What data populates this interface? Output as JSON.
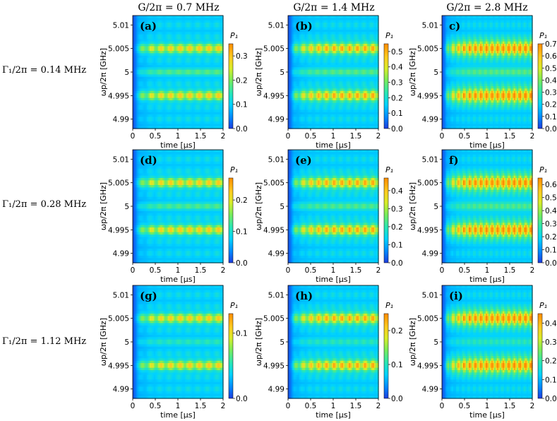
{
  "figure": {
    "column_titles": [
      "G/2π = 0.7 MHz",
      "G/2π = 1.4 MHz",
      "G/2π = 2.8 MHz"
    ],
    "row_titles": [
      "Γ₁/2π = 0.14 MHz",
      "Γ₁/2π = 0.28 MHz",
      "Γ₁/2π = 1.12 MHz"
    ],
    "colorbar_label": "P₁",
    "colormap": [
      "#1e3cdc",
      "#008cff",
      "#00d2ff",
      "#28e6b4",
      "#78ec5a",
      "#d8ec28",
      "#ffc81e",
      "#ff8c00"
    ]
  },
  "chart_data": [
    {
      "type": "heatmap",
      "panel": "(a)",
      "xlabel": "time [μs]",
      "ylabel": "ωp/2π [GHz]",
      "xlim": [
        0,
        2
      ],
      "ylim": [
        4.988,
        5.012
      ],
      "xticks": [
        {
          "v": 0,
          "t": "0"
        },
        {
          "v": 0.5,
          "t": "0.5"
        },
        {
          "v": 1,
          "t": "1"
        },
        {
          "v": 1.5,
          "t": "1.5"
        },
        {
          "v": 2,
          "t": "2"
        }
      ],
      "yticks": [
        {
          "v": 4.99,
          "t": "4.99"
        },
        {
          "v": 4.995,
          "t": "4.995"
        },
        {
          "v": 5,
          "t": "5"
        },
        {
          "v": 5.005,
          "t": "5.005"
        },
        {
          "v": 5.01,
          "t": "5.01"
        }
      ],
      "colorbar": {
        "min": 0,
        "max": 0.35,
        "ticks": [
          {
            "v": 0,
            "t": "0.0"
          },
          {
            "v": 0.1,
            "t": "0.1"
          },
          {
            "v": 0.2,
            "t": "0.2"
          },
          {
            "v": 0.3,
            "t": "0.3"
          }
        ]
      },
      "bands_GHz": [
        5.005,
        4.995
      ],
      "G_MHz": 0.7,
      "Gamma1_MHz": 0.14
    },
    {
      "type": "heatmap",
      "panel": "(b)",
      "xlabel": "time [μs]",
      "ylabel": "ωp/2π [GHz]",
      "xlim": [
        0,
        2
      ],
      "ylim": [
        4.988,
        5.012
      ],
      "xticks": [
        {
          "v": 0,
          "t": "0"
        },
        {
          "v": 0.5,
          "t": "0.5"
        },
        {
          "v": 1,
          "t": "1"
        },
        {
          "v": 1.5,
          "t": "1.5"
        },
        {
          "v": 2,
          "t": "2"
        }
      ],
      "yticks": [
        {
          "v": 4.99,
          "t": "4.99"
        },
        {
          "v": 4.995,
          "t": "4.995"
        },
        {
          "v": 5,
          "t": "5"
        },
        {
          "v": 5.005,
          "t": "5.005"
        },
        {
          "v": 5.01,
          "t": "5.01"
        }
      ],
      "colorbar": {
        "min": 0,
        "max": 0.55,
        "ticks": [
          {
            "v": 0,
            "t": "0.0"
          },
          {
            "v": 0.1,
            "t": "0.1"
          },
          {
            "v": 0.2,
            "t": "0.2"
          },
          {
            "v": 0.3,
            "t": "0.3"
          },
          {
            "v": 0.4,
            "t": "0.4"
          },
          {
            "v": 0.5,
            "t": "0.5"
          }
        ]
      },
      "bands_GHz": [
        5.005,
        4.995
      ],
      "G_MHz": 1.4,
      "Gamma1_MHz": 0.14
    },
    {
      "type": "heatmap",
      "panel": "c)",
      "xlabel": "time [μs]",
      "ylabel": "ωp/2π [GHz]",
      "xlim": [
        0,
        2
      ],
      "ylim": [
        4.988,
        5.012
      ],
      "xticks": [
        {
          "v": 0,
          "t": "0"
        },
        {
          "v": 0.5,
          "t": "0.5"
        },
        {
          "v": 1,
          "t": "1"
        },
        {
          "v": 1.5,
          "t": "1.5"
        },
        {
          "v": 2,
          "t": "2"
        }
      ],
      "yticks": [
        {
          "v": 4.99,
          "t": "4.99"
        },
        {
          "v": 4.995,
          "t": "4.995"
        },
        {
          "v": 5,
          "t": "5"
        },
        {
          "v": 5.005,
          "t": "5.005"
        },
        {
          "v": 5.01,
          "t": "5.01"
        }
      ],
      "colorbar": {
        "min": 0,
        "max": 0.7,
        "ticks": [
          {
            "v": 0,
            "t": "0.0"
          },
          {
            "v": 0.1,
            "t": "0.1"
          },
          {
            "v": 0.2,
            "t": "0.2"
          },
          {
            "v": 0.3,
            "t": "0.3"
          },
          {
            "v": 0.4,
            "t": "0.4"
          },
          {
            "v": 0.5,
            "t": "0.5"
          },
          {
            "v": 0.6,
            "t": "0.6"
          },
          {
            "v": 0.7,
            "t": "0.7"
          }
        ]
      },
      "bands_GHz": [
        5.005,
        4.995
      ],
      "G_MHz": 2.8,
      "Gamma1_MHz": 0.14
    },
    {
      "type": "heatmap",
      "panel": "(d)",
      "xlabel": "time [μs]",
      "ylabel": "ωp/2π [GHz]",
      "xlim": [
        0,
        2
      ],
      "ylim": [
        4.988,
        5.012
      ],
      "xticks": [
        {
          "v": 0,
          "t": "0"
        },
        {
          "v": 0.5,
          "t": "0.5"
        },
        {
          "v": 1,
          "t": "1"
        },
        {
          "v": 1.5,
          "t": "1.5"
        },
        {
          "v": 2,
          "t": "2"
        }
      ],
      "yticks": [
        {
          "v": 4.99,
          "t": "4.99"
        },
        {
          "v": 4.995,
          "t": "4.995"
        },
        {
          "v": 5,
          "t": "5"
        },
        {
          "v": 5.005,
          "t": "5.005"
        },
        {
          "v": 5.01,
          "t": "5.01"
        }
      ],
      "colorbar": {
        "min": 0,
        "max": 0.27,
        "ticks": [
          {
            "v": 0,
            "t": "0.0"
          },
          {
            "v": 0.1,
            "t": "0.1"
          },
          {
            "v": 0.2,
            "t": "0.2"
          }
        ]
      },
      "bands_GHz": [
        5.005,
        4.995
      ],
      "G_MHz": 0.7,
      "Gamma1_MHz": 0.28
    },
    {
      "type": "heatmap",
      "panel": "(e)",
      "xlabel": "time [μs]",
      "ylabel": "ωp/2π [GHz]",
      "xlim": [
        0,
        2
      ],
      "ylim": [
        4.988,
        5.012
      ],
      "xticks": [
        {
          "v": 0,
          "t": "0"
        },
        {
          "v": 0.5,
          "t": "0.5"
        },
        {
          "v": 1,
          "t": "1"
        },
        {
          "v": 1.5,
          "t": "1.5"
        },
        {
          "v": 2,
          "t": "2"
        }
      ],
      "yticks": [
        {
          "v": 4.99,
          "t": "4.99"
        },
        {
          "v": 4.995,
          "t": "4.995"
        },
        {
          "v": 5,
          "t": "5"
        },
        {
          "v": 5.005,
          "t": "5.005"
        },
        {
          "v": 5.01,
          "t": "5.01"
        }
      ],
      "colorbar": {
        "min": 0,
        "max": 0.47,
        "ticks": [
          {
            "v": 0,
            "t": "0.0"
          },
          {
            "v": 0.1,
            "t": "0.1"
          },
          {
            "v": 0.2,
            "t": "0.2"
          },
          {
            "v": 0.3,
            "t": "0.3"
          },
          {
            "v": 0.4,
            "t": "0.4"
          }
        ]
      },
      "bands_GHz": [
        5.005,
        4.995
      ],
      "G_MHz": 1.4,
      "Gamma1_MHz": 0.28
    },
    {
      "type": "heatmap",
      "panel": "f)",
      "xlabel": "time [μs]",
      "ylabel": "ωp/2π [GHz]",
      "xlim": [
        0,
        2
      ],
      "ylim": [
        4.988,
        5.012
      ],
      "xticks": [
        {
          "v": 0,
          "t": "0"
        },
        {
          "v": 0.5,
          "t": "0.5"
        },
        {
          "v": 1,
          "t": "1"
        },
        {
          "v": 1.5,
          "t": "1.5"
        },
        {
          "v": 2,
          "t": "2"
        }
      ],
      "yticks": [
        {
          "v": 4.99,
          "t": "4.99"
        },
        {
          "v": 4.995,
          "t": "4.995"
        },
        {
          "v": 5,
          "t": "5"
        },
        {
          "v": 5.005,
          "t": "5.005"
        },
        {
          "v": 5.01,
          "t": "5.01"
        }
      ],
      "colorbar": {
        "min": 0,
        "max": 0.65,
        "ticks": [
          {
            "v": 0,
            "t": "0.0"
          },
          {
            "v": 0.1,
            "t": "0.1"
          },
          {
            "v": 0.2,
            "t": "0.2"
          },
          {
            "v": 0.3,
            "t": "0.3"
          },
          {
            "v": 0.4,
            "t": "0.4"
          },
          {
            "v": 0.5,
            "t": "0.5"
          },
          {
            "v": 0.6,
            "t": "0.6"
          }
        ]
      },
      "bands_GHz": [
        5.005,
        4.995
      ],
      "G_MHz": 2.8,
      "Gamma1_MHz": 0.28
    },
    {
      "type": "heatmap",
      "panel": "(g)",
      "xlabel": "time [μs]",
      "ylabel": "ωp/2π [GHz]",
      "xlim": [
        0,
        2
      ],
      "ylim": [
        4.988,
        5.012
      ],
      "xticks": [
        {
          "v": 0,
          "t": "0"
        },
        {
          "v": 0.5,
          "t": "0.5"
        },
        {
          "v": 1,
          "t": "1"
        },
        {
          "v": 1.5,
          "t": "1.5"
        },
        {
          "v": 2,
          "t": "2"
        }
      ],
      "yticks": [
        {
          "v": 4.99,
          "t": "4.99"
        },
        {
          "v": 4.995,
          "t": "4.995"
        },
        {
          "v": 5,
          "t": "5"
        },
        {
          "v": 5.005,
          "t": "5.005"
        },
        {
          "v": 5.01,
          "t": "5.01"
        }
      ],
      "colorbar": {
        "min": 0,
        "max": 0.13,
        "ticks": [
          {
            "v": 0,
            "t": "0.0"
          },
          {
            "v": 0.1,
            "t": "0.1"
          }
        ]
      },
      "bands_GHz": [
        5.005,
        4.995
      ],
      "G_MHz": 0.7,
      "Gamma1_MHz": 1.12
    },
    {
      "type": "heatmap",
      "panel": "(h)",
      "xlabel": "time [μs]",
      "ylabel": "ωp/2π [GHz]",
      "xlim": [
        0,
        2
      ],
      "ylim": [
        4.988,
        5.012
      ],
      "xticks": [
        {
          "v": 0,
          "t": "0"
        },
        {
          "v": 0.5,
          "t": "0.5"
        },
        {
          "v": 1,
          "t": "1"
        },
        {
          "v": 1.5,
          "t": "1.5"
        },
        {
          "v": 2,
          "t": "2"
        }
      ],
      "yticks": [
        {
          "v": 4.99,
          "t": "4.99"
        },
        {
          "v": 4.995,
          "t": "4.995"
        },
        {
          "v": 5,
          "t": "5"
        },
        {
          "v": 5.005,
          "t": "5.005"
        },
        {
          "v": 5.01,
          "t": "5.01"
        }
      ],
      "colorbar": {
        "min": 0,
        "max": 0.25,
        "ticks": [
          {
            "v": 0,
            "t": "0.0"
          },
          {
            "v": 0.1,
            "t": "0.1"
          },
          {
            "v": 0.2,
            "t": "0.2"
          }
        ]
      },
      "bands_GHz": [
        5.005,
        4.995
      ],
      "G_MHz": 1.4,
      "Gamma1_MHz": 1.12
    },
    {
      "type": "heatmap",
      "panel": "(i)",
      "xlabel": "time [μs]",
      "ylabel": "ωp/2π [GHz]",
      "xlim": [
        0,
        2
      ],
      "ylim": [
        4.988,
        5.012
      ],
      "xticks": [
        {
          "v": 0,
          "t": "0"
        },
        {
          "v": 0.5,
          "t": "0.5"
        },
        {
          "v": 1,
          "t": "1"
        },
        {
          "v": 1.5,
          "t": "1.5"
        },
        {
          "v": 2,
          "t": "2"
        }
      ],
      "yticks": [
        {
          "v": 4.99,
          "t": "4.99"
        },
        {
          "v": 4.995,
          "t": "4.995"
        },
        {
          "v": 5,
          "t": "5"
        },
        {
          "v": 5.005,
          "t": "5.005"
        },
        {
          "v": 5.01,
          "t": "5.01"
        }
      ],
      "colorbar": {
        "min": 0,
        "max": 0.45,
        "ticks": [
          {
            "v": 0,
            "t": "0.0"
          },
          {
            "v": 0.1,
            "t": "0.1"
          },
          {
            "v": 0.2,
            "t": "0.2"
          },
          {
            "v": 0.3,
            "t": "0.3"
          },
          {
            "v": 0.4,
            "t": "0.4"
          }
        ]
      },
      "bands_GHz": [
        5.005,
        4.995
      ],
      "G_MHz": 2.8,
      "Gamma1_MHz": 1.12
    }
  ]
}
